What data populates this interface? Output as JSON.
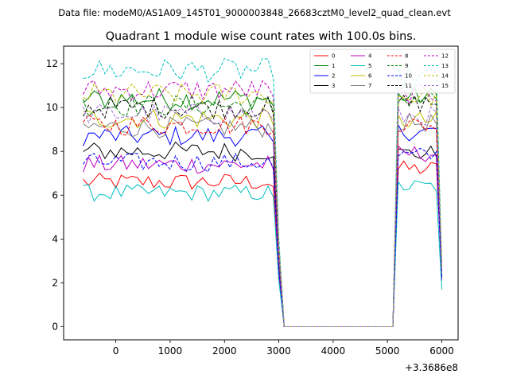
{
  "chart_data": {
    "type": "line",
    "suptitle": "Data file: modeM0/AS1A09_145T01_9000003848_26683cztM0_level2_quad_clean.evt",
    "title": "Quadrant 1 module wise count rates with 100.0s bins.",
    "xlabel": "",
    "ylabel": "",
    "x_offset_label": "+3.3686e8",
    "xlim": [
      -960,
      6300
    ],
    "ylim": [
      -0.6,
      12.8
    ],
    "x_ticks": [
      0,
      1000,
      2000,
      3000,
      4000,
      5000,
      6000
    ],
    "x_tick_labels": [
      "0",
      "1000",
      "2000",
      "3000",
      "4000",
      "5000",
      "6000"
    ],
    "y_ticks": [
      0,
      2,
      4,
      6,
      8,
      10,
      12
    ],
    "y_tick_labels": [
      "0",
      "2",
      "4",
      "6",
      "8",
      "10",
      "12"
    ],
    "legend_position": "upper-right",
    "legend_columns": 4,
    "segments": [
      {
        "x_start": -600,
        "x_end": 2800,
        "step": 100
      },
      {
        "x_end_drop": 3000,
        "x_zero_start": 3100,
        "x_zero_end": 5100
      },
      {
        "x_start": 5200,
        "x_end": 5900,
        "step": 100,
        "x_last_drop": 6000
      }
    ],
    "series": [
      {
        "name": "0",
        "color": "#ff0000",
        "style": "solid",
        "seg1_mean": 6.6,
        "seg2_mean": 7.2,
        "last": 2.4
      },
      {
        "name": "1",
        "color": "#008000",
        "style": "solid",
        "seg1_mean": 10.4,
        "seg2_mean": 10.5,
        "last": 2.6
      },
      {
        "name": "2",
        "color": "#0000ff",
        "style": "solid",
        "seg1_mean": 8.7,
        "seg2_mean": 8.9,
        "last": 2.3
      },
      {
        "name": "3",
        "color": "#000000",
        "style": "solid",
        "seg1_mean": 8.0,
        "seg2_mean": 7.9,
        "last": 2.2
      },
      {
        "name": "4",
        "color": "#c000c0",
        "style": "solid",
        "seg1_mean": 7.4,
        "seg2_mean": 7.9,
        "last": 2.1
      },
      {
        "name": "5",
        "color": "#00bfbf",
        "style": "solid",
        "seg1_mean": 6.1,
        "seg2_mean": 6.4,
        "last": 1.7
      },
      {
        "name": "6",
        "color": "#bfbf00",
        "style": "solid",
        "seg1_mean": 9.5,
        "seg2_mean": 9.4,
        "last": 2.5
      },
      {
        "name": "7",
        "color": "#808080",
        "style": "solid",
        "seg1_mean": 9.1,
        "seg2_mean": 9.3,
        "last": 2.4
      },
      {
        "name": "8",
        "color": "#ff0000",
        "style": "dashed",
        "seg1_mean": 9.2,
        "seg2_mean": 9.2,
        "last": 2.4
      },
      {
        "name": "9",
        "color": "#008000",
        "style": "dashed",
        "seg1_mean": 10.1,
        "seg2_mean": 10.4,
        "last": 2.6
      },
      {
        "name": "10",
        "color": "#0000ff",
        "style": "dashed",
        "seg1_mean": 7.5,
        "seg2_mean": 7.8,
        "last": 2.2
      },
      {
        "name": "11",
        "color": "#000000",
        "style": "dashed",
        "seg1_mean": 10.0,
        "seg2_mean": 10.2,
        "last": 2.6
      },
      {
        "name": "12",
        "color": "#c000c0",
        "style": "dashed",
        "seg1_mean": 10.8,
        "seg2_mean": 10.6,
        "last": 2.7
      },
      {
        "name": "13",
        "color": "#00bfbf",
        "style": "dashed",
        "seg1_mean": 11.7,
        "seg2_mean": 11.4,
        "last": 2.9
      },
      {
        "name": "14",
        "color": "#bfbf00",
        "style": "dashed",
        "seg1_mean": 10.6,
        "seg2_mean": 10.5,
        "last": 2.7
      },
      {
        "name": "15",
        "color": "#a070d0",
        "style": "dashed",
        "seg1_mean": 9.7,
        "seg2_mean": 9.6,
        "last": 2.5
      }
    ]
  }
}
